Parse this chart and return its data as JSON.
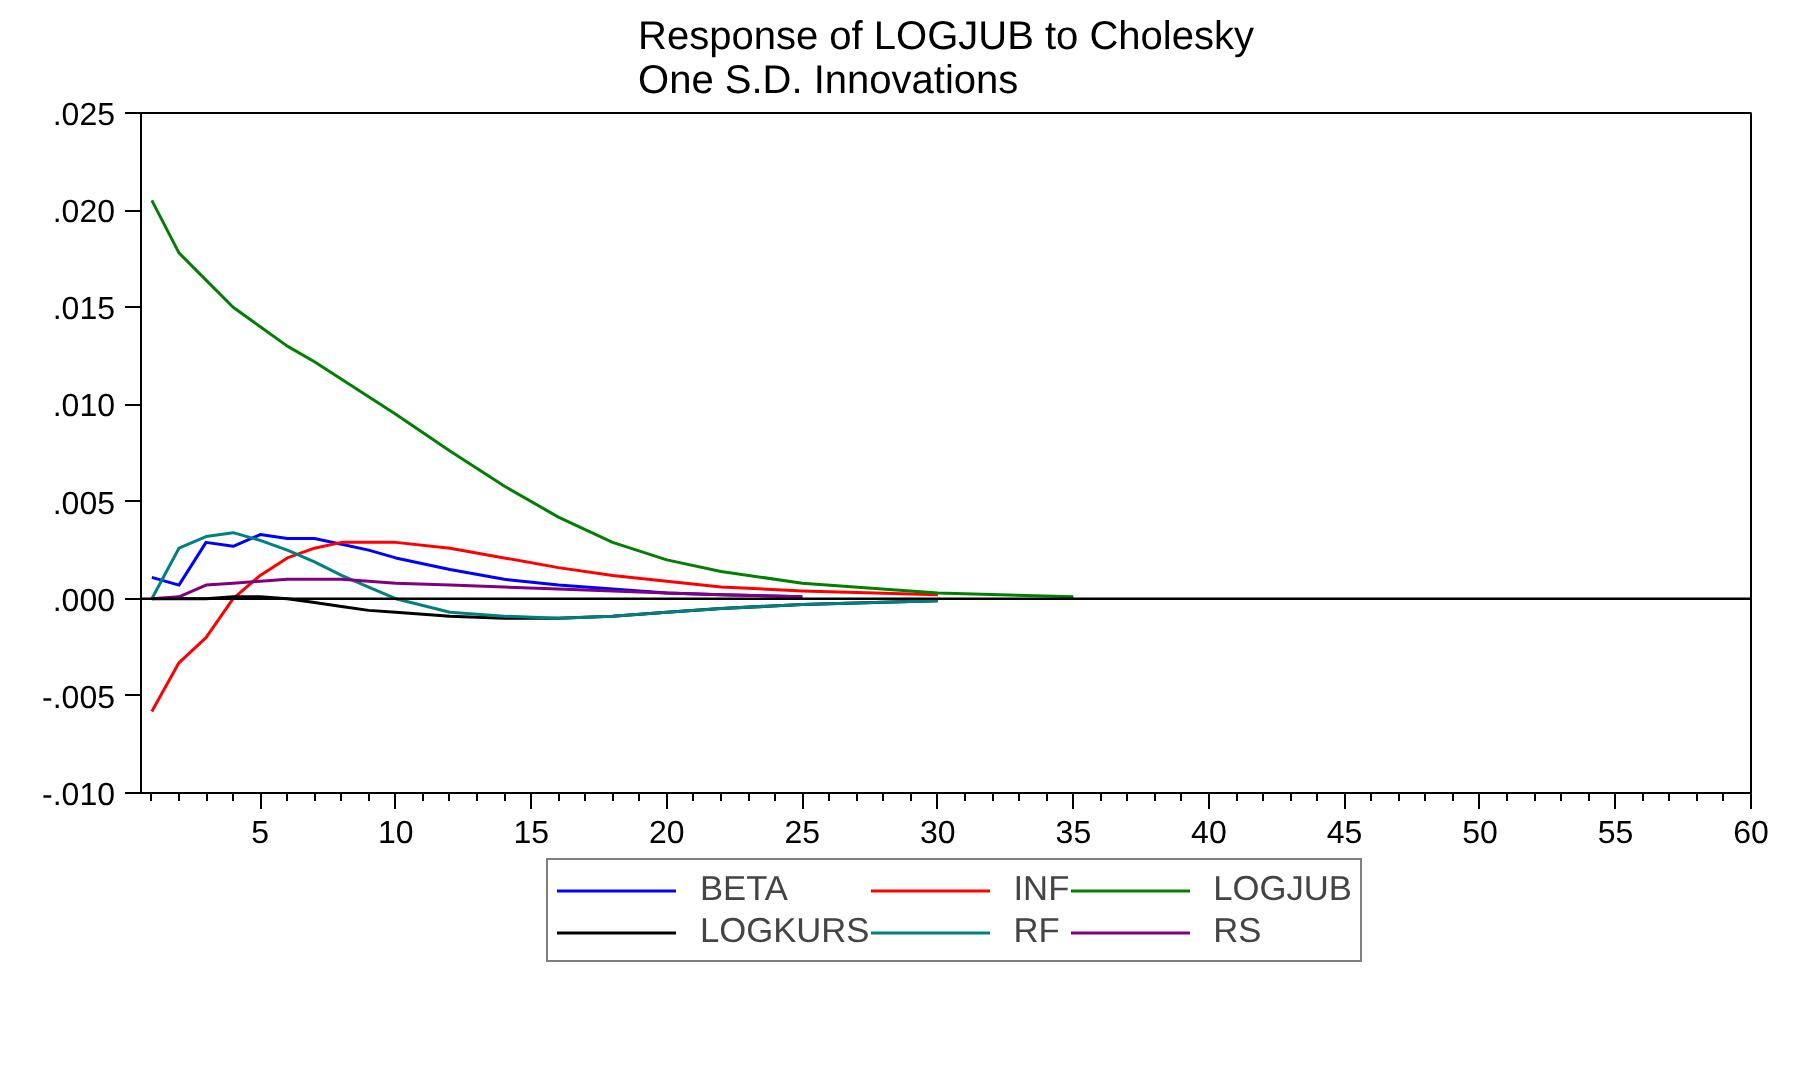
{
  "chart_data": {
    "type": "line",
    "title": "Response of LOGJUB to Cholesky\nOne S.D. Innovations",
    "series": [
      {
        "name": "BETA",
        "color": "#0000ff",
        "x": [
          1,
          2,
          3,
          4,
          5,
          6,
          7,
          8,
          9,
          10,
          12,
          14,
          16,
          18,
          20,
          22,
          25
        ],
        "values": [
          0.0011,
          0.0007,
          0.0029,
          0.0027,
          0.0033,
          0.0031,
          0.0031,
          0.0028,
          0.0025,
          0.0021,
          0.0015,
          0.001,
          0.0007,
          0.0005,
          0.0003,
          0.0002,
          0.0001
        ]
      },
      {
        "name": "INF",
        "color": "#ff0000",
        "x": [
          1,
          2,
          3,
          4,
          5,
          6,
          7,
          8,
          9,
          10,
          12,
          14,
          16,
          18,
          20,
          22,
          25,
          30
        ],
        "values": [
          -0.0058,
          -0.0033,
          -0.002,
          0.0,
          0.0012,
          0.0021,
          0.0026,
          0.0029,
          0.0029,
          0.0029,
          0.0026,
          0.0021,
          0.0016,
          0.0012,
          0.0009,
          0.0006,
          0.0004,
          0.0002
        ]
      },
      {
        "name": "LOGJUB",
        "color": "#008000",
        "x": [
          1,
          2,
          3,
          4,
          5,
          6,
          7,
          8,
          9,
          10,
          12,
          14,
          16,
          18,
          20,
          22,
          25,
          30,
          35
        ],
        "values": [
          0.0205,
          0.0178,
          0.0164,
          0.015,
          0.014,
          0.013,
          0.0122,
          0.0113,
          0.0104,
          0.0095,
          0.0076,
          0.0058,
          0.0042,
          0.0029,
          0.002,
          0.0014,
          0.0008,
          0.0003,
          0.0001
        ]
      },
      {
        "name": "LOGKURS",
        "color": "#000000",
        "x": [
          1,
          2,
          3,
          4,
          5,
          6,
          7,
          8,
          9,
          10,
          12,
          14,
          16,
          18,
          20,
          22,
          25,
          30
        ],
        "values": [
          0.0,
          0.0,
          0.0,
          0.0001,
          0.0001,
          0.0,
          -0.0002,
          -0.0004,
          -0.0006,
          -0.0007,
          -0.0009,
          -0.001,
          -0.001,
          -0.0009,
          -0.0007,
          -0.0005,
          -0.0003,
          -0.0001
        ]
      },
      {
        "name": "RF",
        "color": "#008080",
        "x": [
          1,
          2,
          3,
          4,
          5,
          6,
          7,
          8,
          9,
          10,
          12,
          14,
          16,
          18,
          20,
          22,
          25,
          30
        ],
        "values": [
          0.0,
          0.0026,
          0.0032,
          0.0034,
          0.003,
          0.0025,
          0.0019,
          0.0012,
          0.0006,
          0.0,
          -0.0007,
          -0.0009,
          -0.001,
          -0.0009,
          -0.0007,
          -0.0005,
          -0.0003,
          -0.0001
        ]
      },
      {
        "name": "RS",
        "color": "#800080",
        "x": [
          1,
          2,
          3,
          4,
          5,
          6,
          7,
          8,
          9,
          10,
          12,
          14,
          16,
          18,
          20,
          22,
          25
        ],
        "values": [
          0.0,
          0.0001,
          0.0007,
          0.0008,
          0.0009,
          0.001,
          0.001,
          0.001,
          0.0009,
          0.0008,
          0.0007,
          0.0006,
          0.0005,
          0.0004,
          0.0003,
          0.0002,
          0.0001
        ]
      }
    ],
    "xlim": [
      0.6,
      60
    ],
    "xticks": [
      5,
      10,
      15,
      20,
      25,
      30,
      35,
      40,
      45,
      50,
      55,
      60
    ],
    "ylim": [
      -0.01,
      0.025
    ],
    "yticks": [
      {
        "value": -0.01,
        "label": "-.010"
      },
      {
        "value": -0.005,
        "label": "-.005"
      },
      {
        "value": 0,
        "label": ".000"
      },
      {
        "value": 0.005,
        "label": ".005"
      },
      {
        "value": 0.01,
        "label": ".010"
      },
      {
        "value": 0.015,
        "label": ".015"
      },
      {
        "value": 0.02,
        "label": ".020"
      },
      {
        "value": 0.025,
        "label": ".025"
      }
    ],
    "ref_lines": [
      {
        "axis": "y",
        "value": 0,
        "label": null,
        "color": "#000000"
      }
    ],
    "grid": false,
    "legend": "bottom",
    "line_style": "solid"
  }
}
